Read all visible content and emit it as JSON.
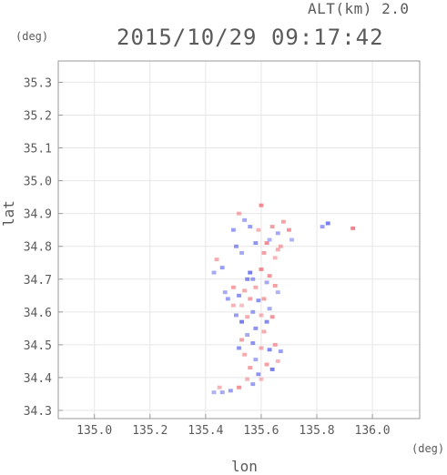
{
  "header": {
    "altitude": "ALT(km)  2.0",
    "timestamp": "2015/10/29 09:17:42",
    "y_unit": "(deg)",
    "x_unit": "(deg)"
  },
  "chart_data": {
    "type": "heatmap",
    "title": "2015/10/29 09:17:42",
    "subtitle": "ALT(km)  2.0",
    "xlabel": "lon",
    "ylabel": "lat",
    "xlim": [
      134.87,
      136.17
    ],
    "ylim": [
      34.275,
      35.365
    ],
    "xticks": [
      135.0,
      135.2,
      135.4,
      135.6,
      135.8,
      136.0
    ],
    "yticks": [
      34.3,
      34.4,
      34.5,
      34.6,
      34.7,
      34.8,
      34.9,
      35.0,
      35.1,
      35.2,
      35.3
    ],
    "x_tick_labels": [
      "135.0",
      "135.2",
      "135.4",
      "135.6",
      "135.8",
      "136.0"
    ],
    "y_tick_labels": [
      "34.3",
      "34.4",
      "34.5",
      "34.6",
      "34.7",
      "34.8",
      "34.9",
      "35.0",
      "35.1",
      "35.2",
      "35.3"
    ],
    "grid": true,
    "colors": {
      "positive": "#f0787f",
      "negative": "#6e74ee"
    },
    "cells": [
      [
        135.93,
        34.855,
        0.9
      ],
      [
        135.84,
        34.87,
        -0.9
      ],
      [
        135.82,
        34.86,
        -0.6
      ],
      [
        135.7,
        34.85,
        0.7
      ],
      [
        135.68,
        34.875,
        0.6
      ],
      [
        135.66,
        34.84,
        -0.5
      ],
      [
        135.64,
        34.86,
        0.6
      ],
      [
        135.62,
        34.81,
        0.8
      ],
      [
        135.66,
        34.79,
        0.5
      ],
      [
        135.65,
        34.765,
        0.4
      ],
      [
        135.58,
        34.81,
        -0.7
      ],
      [
        135.56,
        34.86,
        -0.6
      ],
      [
        135.54,
        34.88,
        -0.5
      ],
      [
        135.52,
        34.9,
        0.5
      ],
      [
        135.5,
        34.85,
        -0.6
      ],
      [
        135.51,
        34.8,
        -0.7
      ],
      [
        135.53,
        34.78,
        -0.5
      ],
      [
        135.6,
        34.925,
        0.8
      ],
      [
        135.59,
        34.85,
        0.4
      ],
      [
        135.61,
        34.78,
        0.6
      ],
      [
        135.63,
        34.82,
        -0.4
      ],
      [
        135.67,
        34.8,
        0.5
      ],
      [
        135.71,
        34.82,
        -0.4
      ],
      [
        135.44,
        34.76,
        0.5
      ],
      [
        135.46,
        34.735,
        -0.6
      ],
      [
        135.43,
        34.72,
        -0.5
      ],
      [
        135.56,
        34.72,
        -0.9
      ],
      [
        135.55,
        34.7,
        -0.8
      ],
      [
        135.57,
        34.7,
        -0.6
      ],
      [
        135.58,
        34.675,
        0.5
      ],
      [
        135.6,
        34.73,
        0.8
      ],
      [
        135.63,
        34.71,
        0.7
      ],
      [
        135.62,
        34.69,
        -0.5
      ],
      [
        135.65,
        34.68,
        0.6
      ],
      [
        135.66,
        34.66,
        -0.4
      ],
      [
        135.54,
        34.665,
        0.5
      ],
      [
        135.52,
        34.65,
        -0.7
      ],
      [
        135.5,
        34.675,
        0.6
      ],
      [
        135.48,
        34.64,
        -0.6
      ],
      [
        135.47,
        34.66,
        -0.5
      ],
      [
        135.53,
        34.62,
        0.3
      ],
      [
        135.56,
        34.64,
        0.6
      ],
      [
        135.59,
        34.635,
        -0.7
      ],
      [
        135.61,
        34.64,
        0.6
      ],
      [
        135.63,
        34.61,
        -0.5
      ],
      [
        135.64,
        34.585,
        0.7
      ],
      [
        135.62,
        34.57,
        -0.8
      ],
      [
        135.6,
        34.59,
        0.4
      ],
      [
        135.57,
        34.6,
        -0.6
      ],
      [
        135.55,
        34.585,
        0.5
      ],
      [
        135.53,
        34.57,
        -0.9
      ],
      [
        135.51,
        34.59,
        -0.6
      ],
      [
        135.5,
        34.62,
        0.4
      ],
      [
        135.58,
        34.55,
        -0.7
      ],
      [
        135.61,
        34.54,
        0.5
      ],
      [
        135.55,
        34.53,
        -0.5
      ],
      [
        135.53,
        34.515,
        0.6
      ],
      [
        135.57,
        34.505,
        -0.7
      ],
      [
        135.6,
        34.49,
        0.5
      ],
      [
        135.63,
        34.485,
        -0.8
      ],
      [
        135.65,
        34.5,
        0.6
      ],
      [
        135.67,
        34.48,
        -0.6
      ],
      [
        135.52,
        34.49,
        -0.7
      ],
      [
        135.54,
        34.47,
        0.5
      ],
      [
        135.58,
        34.455,
        -0.5
      ],
      [
        135.62,
        34.44,
        0.6
      ],
      [
        135.64,
        34.425,
        -0.9
      ],
      [
        135.66,
        34.45,
        0.4
      ],
      [
        135.56,
        34.43,
        0.6
      ],
      [
        135.59,
        34.41,
        -0.7
      ],
      [
        135.55,
        34.395,
        0.4
      ],
      [
        135.57,
        34.38,
        -0.6
      ],
      [
        135.52,
        34.37,
        0.7
      ],
      [
        135.49,
        34.36,
        -0.6
      ],
      [
        135.46,
        34.355,
        -0.5
      ],
      [
        135.43,
        34.355,
        -0.4
      ],
      [
        135.45,
        34.37,
        0.4
      ],
      [
        135.6,
        34.395,
        0.3
      ]
    ]
  }
}
